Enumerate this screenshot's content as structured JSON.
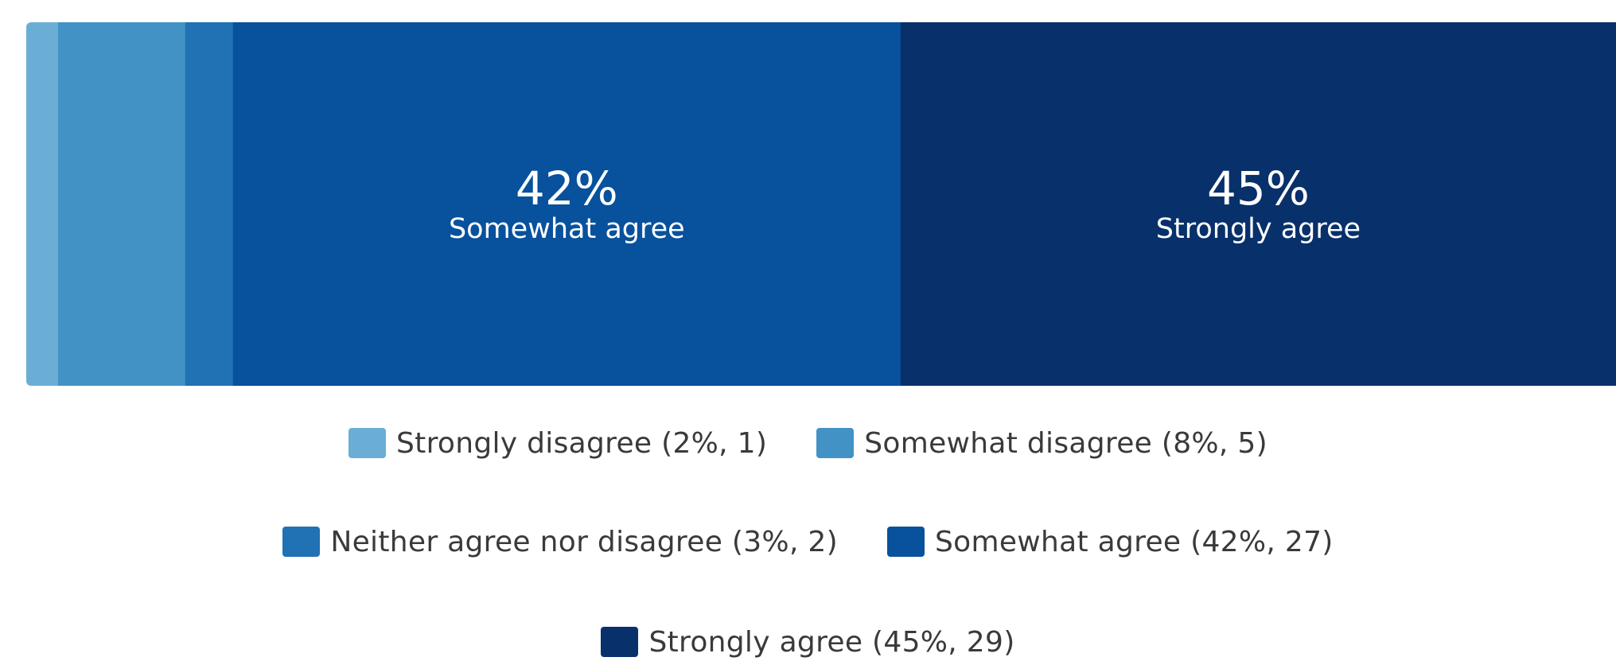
{
  "chart_data": {
    "type": "bar",
    "orientation": "horizontal-stacked",
    "categories": [
      "Strongly disagree",
      "Somewhat disagree",
      "Neither agree nor disagree",
      "Somewhat agree",
      "Strongly agree"
    ],
    "values": [
      2,
      8,
      3,
      42,
      45
    ],
    "counts": [
      1,
      5,
      2,
      27,
      29
    ],
    "colors": [
      "#6aaed6",
      "#4292c6",
      "#2171b5",
      "#08519c",
      "#08306b"
    ],
    "bar_labels": [
      {
        "value": "",
        "name": ""
      },
      {
        "value": "",
        "name": ""
      },
      {
        "value": "",
        "name": ""
      },
      {
        "value": "42%",
        "name": "Somewhat agree"
      },
      {
        "value": "45%",
        "name": "Strongly agree"
      }
    ],
    "legend_position": "bottom"
  },
  "legend": [
    {
      "label": "Strongly disagree (2%, 1)",
      "color": "#6aaed6"
    },
    {
      "label": "Somewhat disagree (8%, 5)",
      "color": "#4292c6"
    },
    {
      "label": "Neither agree nor disagree (3%, 2)",
      "color": "#2171b5"
    },
    {
      "label": "Somewhat agree (42%, 27)",
      "color": "#08519c"
    },
    {
      "label": "Strongly agree (45%, 29)",
      "color": "#08306b"
    }
  ]
}
